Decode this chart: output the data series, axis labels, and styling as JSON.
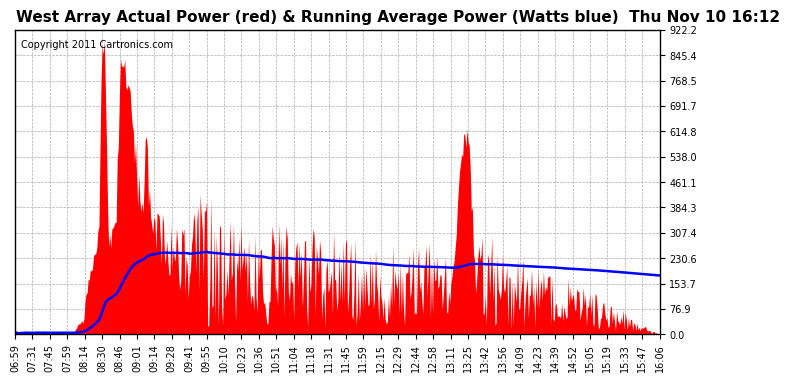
{
  "title": "West Array Actual Power (red) & Running Average Power (Watts blue)  Thu Nov 10 16:12",
  "copyright": "Copyright 2011 Cartronics.com",
  "ylim": [
    0.0,
    922.2
  ],
  "yticks": [
    0.0,
    76.9,
    153.7,
    230.6,
    307.4,
    384.3,
    461.1,
    538.0,
    614.8,
    691.7,
    768.5,
    845.4,
    922.2
  ],
  "ytick_labels": [
    "0.0",
    "76.9",
    "153.7",
    "230.6",
    "307.4",
    "384.3",
    "461.1",
    "538.0",
    "614.8",
    "691.7",
    "768.5",
    "845.4",
    "922.2"
  ],
  "xtick_labels": [
    "06:59",
    "07:31",
    "07:45",
    "07:59",
    "08:14",
    "08:30",
    "08:46",
    "09:01",
    "09:14",
    "09:28",
    "09:41",
    "09:55",
    "10:10",
    "10:23",
    "10:36",
    "10:51",
    "11:04",
    "11:18",
    "11:31",
    "11:45",
    "11:59",
    "12:15",
    "12:29",
    "12:44",
    "12:58",
    "13:11",
    "13:25",
    "13:42",
    "13:56",
    "14:09",
    "14:23",
    "14:39",
    "14:52",
    "15:05",
    "15:19",
    "15:33",
    "15:47",
    "16:06"
  ],
  "bg_color": "#ffffff",
  "plot_bg_color": "#ffffff",
  "grid_color": "#aaaaaa",
  "bar_color": "#ff0000",
  "line_color": "#0000ff",
  "title_fontsize": 11,
  "copyright_fontsize": 7,
  "tick_fontsize": 7
}
